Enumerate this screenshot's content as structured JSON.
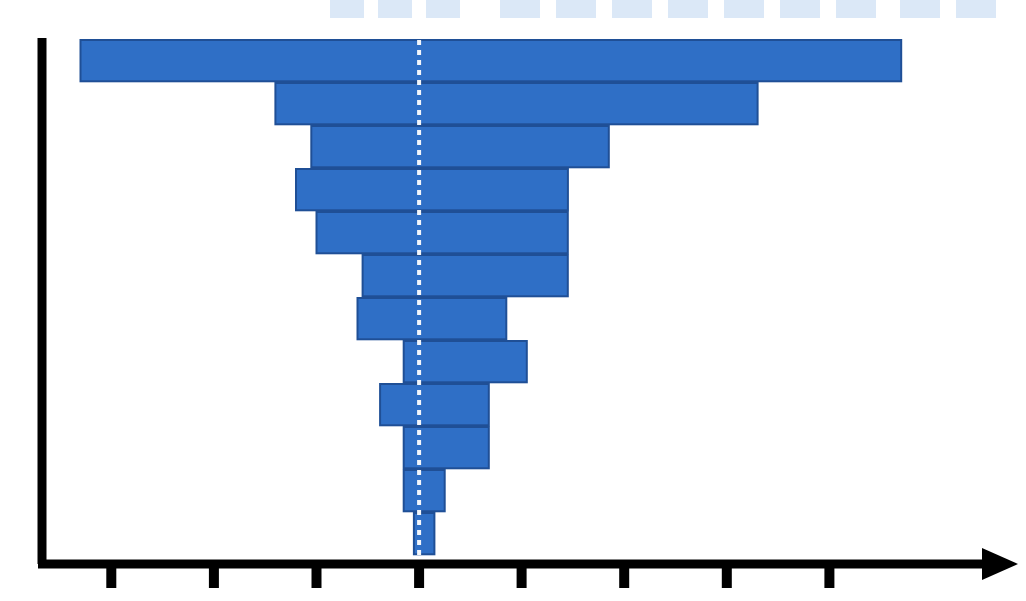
{
  "chart_data": {
    "type": "bar",
    "orientation": "horizontal",
    "layout": "tornado",
    "series": [
      {
        "bars": [
          {
            "low": -3.3,
            "high": 4.7
          },
          {
            "low": -1.4,
            "high": 3.3
          },
          {
            "low": -1.05,
            "high": 1.85
          },
          {
            "low": -1.2,
            "high": 1.45
          },
          {
            "low": -1.0,
            "high": 1.45
          },
          {
            "low": -0.55,
            "high": 1.45
          },
          {
            "low": -0.6,
            "high": 0.85
          },
          {
            "low": -0.15,
            "high": 1.05
          },
          {
            "low": -0.38,
            "high": 0.68
          },
          {
            "low": -0.15,
            "high": 0.68
          },
          {
            "low": -0.15,
            "high": 0.25
          },
          {
            "low": -0.05,
            "high": 0.15
          }
        ]
      }
    ],
    "xlim": [
      -3.5,
      5.0
    ],
    "x_ticks": [
      -3,
      -2,
      -1,
      0,
      1,
      2,
      3,
      4
    ],
    "center_line": 0,
    "title": "",
    "xlabel": "",
    "ylabel": "",
    "grid": false,
    "legend": "none",
    "colors": {
      "bar_fill": "#2f6fc6",
      "bar_edge": "#1f4f96",
      "axis": "#000000",
      "center_line": "#ffffff"
    }
  }
}
